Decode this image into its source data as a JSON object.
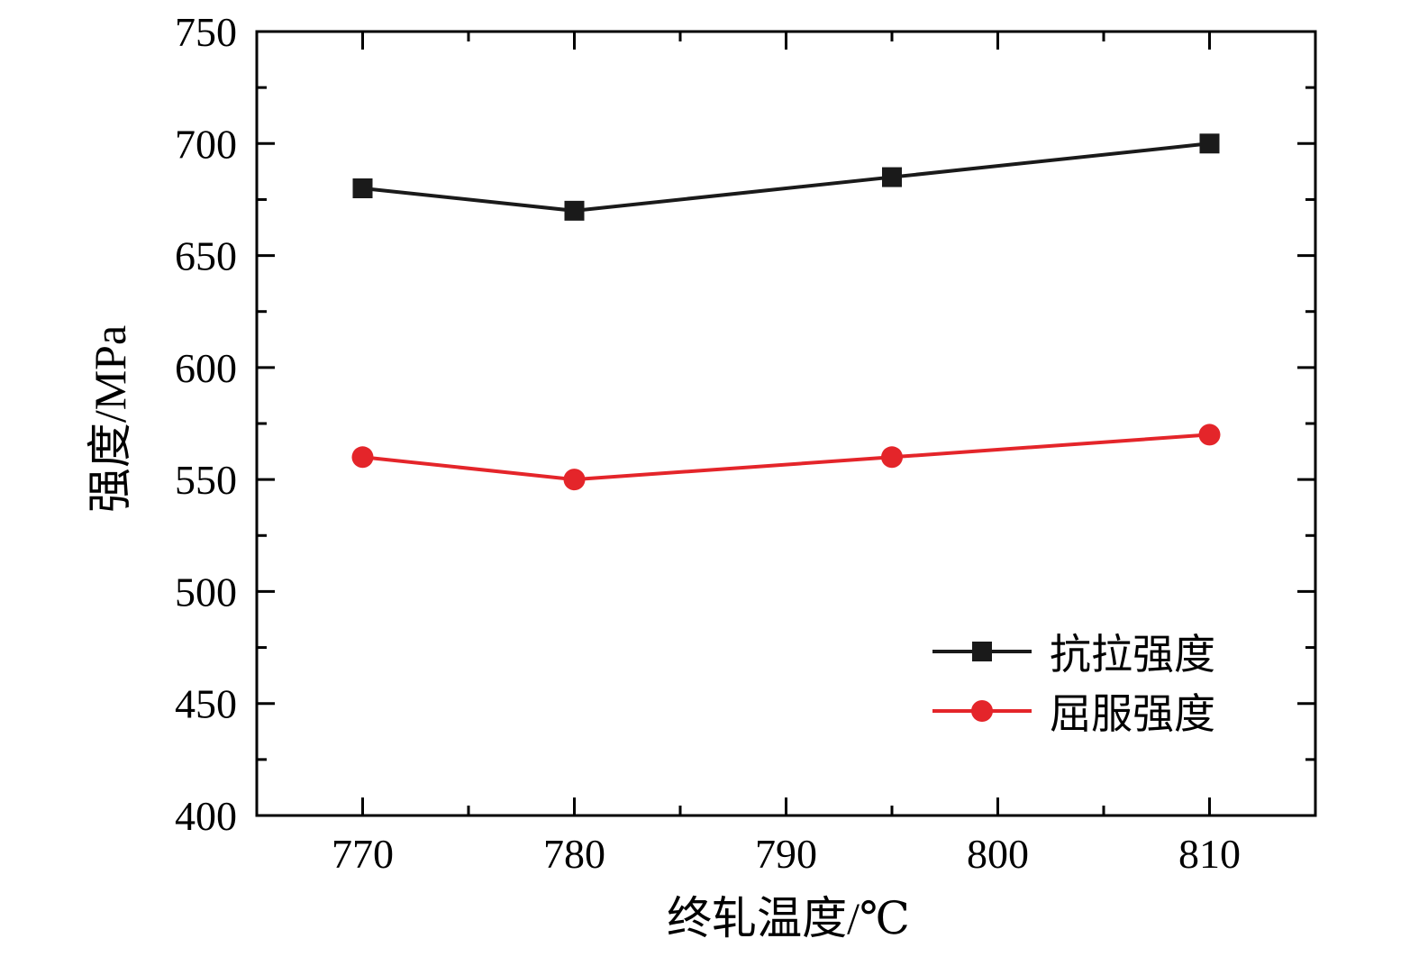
{
  "chart_data": {
    "type": "line",
    "title": "",
    "xlabel": "终轧温度/℃",
    "ylabel": "强度/MPa",
    "x": [
      770,
      780,
      795,
      810
    ],
    "series": [
      {
        "name": "抗拉强度",
        "color": "#1a1a1a",
        "marker": "square",
        "values": [
          680,
          670,
          685,
          700
        ]
      },
      {
        "name": "屈服强度",
        "color": "#e4252a",
        "marker": "circle",
        "values": [
          560,
          550,
          560,
          570
        ]
      }
    ],
    "xlim": [
      765,
      815
    ],
    "ylim": [
      400,
      750
    ],
    "x_ticks": [
      770,
      780,
      790,
      800,
      810
    ],
    "y_ticks": [
      400,
      450,
      500,
      550,
      600,
      650,
      700,
      750
    ],
    "x_minor_step": 5,
    "y_minor_step": 25,
    "grid": false,
    "legend_position": "lower right",
    "frame_color": "#000000"
  }
}
